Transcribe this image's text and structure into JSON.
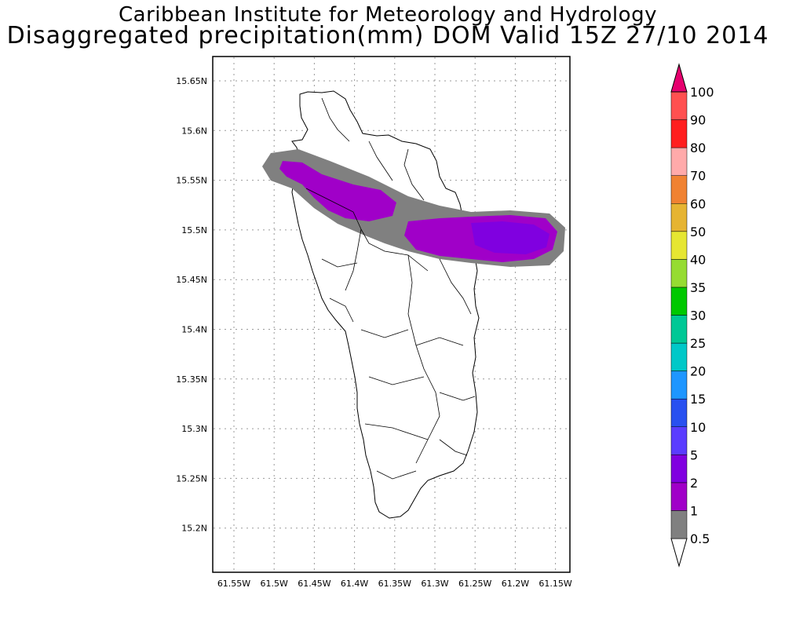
{
  "title_line1": "Caribbean Institute for Meteorology and Hydrology",
  "title_line2": "Disaggregated precipitation(mm) DOM Valid 15Z 27/10 2014",
  "axes": {
    "lon_ticks": [
      "61.55W",
      "61.5W",
      "61.45W",
      "61.4W",
      "61.35W",
      "61.3W",
      "61.25W",
      "61.2W",
      "61.15W"
    ],
    "lat_ticks": [
      "15.65N",
      "15.6N",
      "15.55N",
      "15.5N",
      "15.45N",
      "15.4N",
      "15.35N",
      "15.3N",
      "15.25N",
      "15.2N"
    ]
  },
  "colorbar": {
    "labels": [
      "0.5",
      "1",
      "2",
      "5",
      "10",
      "15",
      "20",
      "25",
      "30",
      "35",
      "40",
      "50",
      "60",
      "70",
      "80",
      "90",
      "100"
    ],
    "colors": [
      "#ffffff",
      "#808080",
      "#a000c8",
      "#8000e0",
      "#5a3cff",
      "#2850f0",
      "#1e96ff",
      "#00c8c8",
      "#00c896",
      "#00c800",
      "#96dc32",
      "#e6e632",
      "#e6b432",
      "#f08232",
      "#ffaaaa",
      "#ff1e1e",
      "#ff5050",
      "#e6006e"
    ]
  },
  "map": {
    "region": "Dominica",
    "shading_levels": {
      "gray": "0.5-1",
      "purple": "1-2",
      "violet": "2-5"
    }
  }
}
